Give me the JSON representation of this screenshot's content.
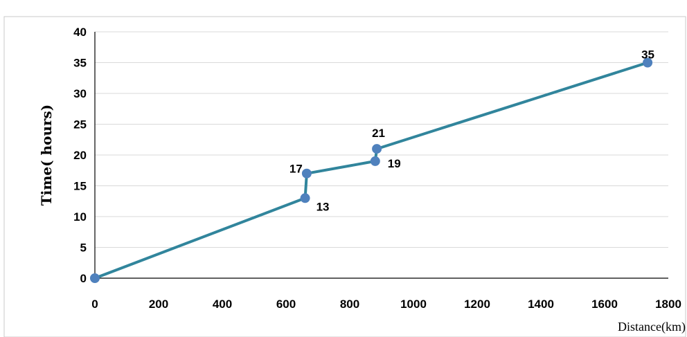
{
  "chart_data": {
    "type": "line",
    "title": "",
    "xlabel": "Distance(km)",
    "ylabel": "Time( hours)",
    "xlim": [
      0,
      1800
    ],
    "ylim": [
      0,
      40
    ],
    "x_ticks": [
      "0",
      "200",
      "400",
      "600",
      "800",
      "1000",
      "1200",
      "1400",
      "1600",
      "1800"
    ],
    "y_ticks": [
      "0",
      "5",
      "10",
      "15",
      "20",
      "25",
      "30",
      "35",
      "40"
    ],
    "grid": true,
    "series": [
      {
        "x": [
          0,
          660,
          665,
          880,
          885,
          1735
        ],
        "y": [
          0,
          13,
          17,
          19,
          21,
          35
        ],
        "data_labels": [
          "",
          "13",
          "17",
          "19",
          "21",
          "35"
        ],
        "line_color": "#31859c",
        "marker_color": "#4f81bd"
      }
    ]
  }
}
